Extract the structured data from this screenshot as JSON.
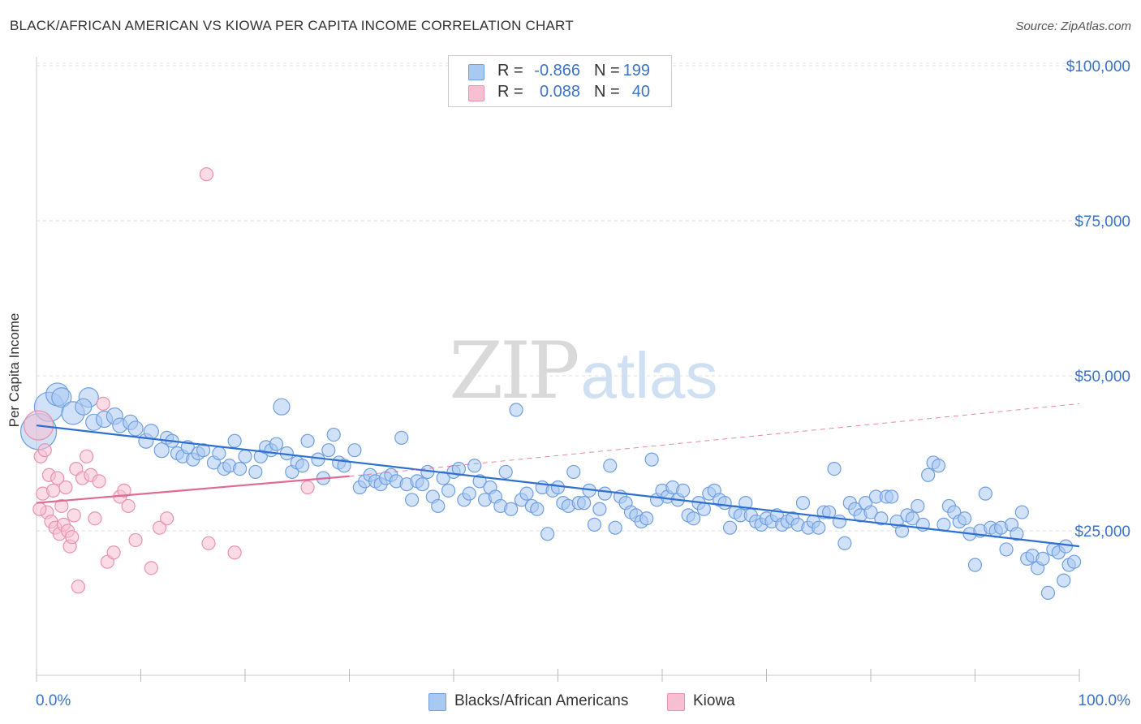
{
  "header": {
    "title": "BLACK/AFRICAN AMERICAN VS KIOWA PER CAPITA INCOME CORRELATION CHART",
    "source": "Source: ZipAtlas.com"
  },
  "watermark": {
    "zip": "ZIP",
    "atlas": "atlas"
  },
  "legend": {
    "rows": [
      {
        "r_label": "R =",
        "r_value": "-0.866",
        "n_label": "N =",
        "n_value": "199",
        "color": "#a9c8f2",
        "edge": "#6f9fe0"
      },
      {
        "r_label": "R =",
        "r_value": "0.088",
        "n_label": "N =",
        "n_value": "40",
        "color": "#f7bfd1",
        "edge": "#e892af"
      }
    ]
  },
  "bottom_legend": [
    {
      "label": "Blacks/African Americans",
      "color": "#a9c8f2",
      "edge": "#6f9fe0"
    },
    {
      "label": "Kiowa",
      "color": "#f7bfd1",
      "edge": "#e892af"
    }
  ],
  "chart_data": {
    "type": "scatter",
    "title": "BLACK/AFRICAN AMERICAN VS KIOWA PER CAPITA INCOME CORRELATION CHART",
    "xlabel": "",
    "ylabel": "Per Capita Income",
    "xlim": [
      0,
      100
    ],
    "ylim": [
      0,
      105000
    ],
    "x_tick_labels": [
      "0.0%",
      "100.0%"
    ],
    "y_ticks": [
      25000,
      50000,
      75000,
      100000
    ],
    "y_tick_labels": [
      "$25,000",
      "$50,000",
      "$75,000",
      "$100,000"
    ],
    "grid": true,
    "legend_position": "top-center",
    "series": [
      {
        "name": "Blacks/African Americans",
        "color": "#a9c8f2",
        "edge": "#6f9fe0",
        "trend": {
          "x": [
            0,
            100
          ],
          "y": [
            42000,
            22500
          ],
          "color": "#2f6fd0"
        },
        "points": [
          [
            0.2,
            41000,
            22
          ],
          [
            1.2,
            45000,
            18
          ],
          [
            2.0,
            47000,
            14
          ],
          [
            2.4,
            46500,
            12
          ],
          [
            3.5,
            44000,
            14
          ],
          [
            5.0,
            46500,
            12
          ],
          [
            4.5,
            45000,
            10
          ],
          [
            5.5,
            42500,
            10
          ],
          [
            6.5,
            43000,
            10
          ],
          [
            7.5,
            43500,
            10
          ],
          [
            8.0,
            42000,
            9
          ],
          [
            9.0,
            42500,
            9
          ],
          [
            9.5,
            41500,
            9
          ],
          [
            10.5,
            39500,
            9
          ],
          [
            11.0,
            41000,
            9
          ],
          [
            12.0,
            38000,
            9
          ],
          [
            12.5,
            40000,
            8
          ],
          [
            13.0,
            39500,
            8
          ],
          [
            13.5,
            37500,
            8
          ],
          [
            14.0,
            37000,
            8
          ],
          [
            14.5,
            38500,
            8
          ],
          [
            15.0,
            36500,
            8
          ],
          [
            15.5,
            37500,
            8
          ],
          [
            16.0,
            38000,
            8
          ],
          [
            17.0,
            36000,
            8
          ],
          [
            17.5,
            37500,
            8
          ],
          [
            18.0,
            35000,
            8
          ],
          [
            18.5,
            35500,
            8
          ],
          [
            19.0,
            39500,
            8
          ],
          [
            19.5,
            35000,
            8
          ],
          [
            20.0,
            37000,
            8
          ],
          [
            21.0,
            34500,
            8
          ],
          [
            21.5,
            37000,
            8
          ],
          [
            22.0,
            38500,
            8
          ],
          [
            22.5,
            38000,
            8
          ],
          [
            23.0,
            39000,
            8
          ],
          [
            23.5,
            45000,
            10
          ],
          [
            24.0,
            37500,
            8
          ],
          [
            24.5,
            34500,
            8
          ],
          [
            25.0,
            36000,
            8
          ],
          [
            25.5,
            35500,
            8
          ],
          [
            26.0,
            39500,
            8
          ],
          [
            27.0,
            36500,
            8
          ],
          [
            27.5,
            33500,
            8
          ],
          [
            28.0,
            38000,
            8
          ],
          [
            28.5,
            40500,
            8
          ],
          [
            29.0,
            36000,
            8
          ],
          [
            29.5,
            35500,
            8
          ],
          [
            30.5,
            38000,
            8
          ],
          [
            31.0,
            32000,
            8
          ],
          [
            31.5,
            33000,
            8
          ],
          [
            32.0,
            34000,
            8
          ],
          [
            32.5,
            33000,
            8
          ],
          [
            33.0,
            32500,
            8
          ],
          [
            33.5,
            33500,
            8
          ],
          [
            34.0,
            34000,
            8
          ],
          [
            34.5,
            33000,
            8
          ],
          [
            35.0,
            40000,
            8
          ],
          [
            35.5,
            32500,
            8
          ],
          [
            36.0,
            30000,
            8
          ],
          [
            36.5,
            33000,
            8
          ],
          [
            37.0,
            32500,
            8
          ],
          [
            37.5,
            34500,
            8
          ],
          [
            38.0,
            30500,
            8
          ],
          [
            38.5,
            29000,
            8
          ],
          [
            39.0,
            33500,
            8
          ],
          [
            39.5,
            31500,
            8
          ],
          [
            40.0,
            34500,
            8
          ],
          [
            40.5,
            35000,
            8
          ],
          [
            41.0,
            30000,
            8
          ],
          [
            41.5,
            31000,
            8
          ],
          [
            42.0,
            35500,
            8
          ],
          [
            42.5,
            33000,
            8
          ],
          [
            43.0,
            30000,
            8
          ],
          [
            43.5,
            32000,
            8
          ],
          [
            44.0,
            30500,
            8
          ],
          [
            44.5,
            29000,
            8
          ],
          [
            45.0,
            34500,
            8
          ],
          [
            45.5,
            28500,
            8
          ],
          [
            46.0,
            44500,
            8
          ],
          [
            46.5,
            30000,
            8
          ],
          [
            47.0,
            31000,
            8
          ],
          [
            47.5,
            29000,
            8
          ],
          [
            48.0,
            28500,
            8
          ],
          [
            48.5,
            32000,
            8
          ],
          [
            49.0,
            24500,
            8
          ],
          [
            49.5,
            31500,
            8
          ],
          [
            50.0,
            32000,
            8
          ],
          [
            50.5,
            29500,
            8
          ],
          [
            51.0,
            29000,
            8
          ],
          [
            51.5,
            34500,
            8
          ],
          [
            52.0,
            29500,
            8
          ],
          [
            52.5,
            29500,
            8
          ],
          [
            53.0,
            31500,
            8
          ],
          [
            53.5,
            26000,
            8
          ],
          [
            54.0,
            28500,
            8
          ],
          [
            54.5,
            31000,
            8
          ],
          [
            55.0,
            35500,
            8
          ],
          [
            55.5,
            25500,
            8
          ],
          [
            56.0,
            30500,
            8
          ],
          [
            56.5,
            29500,
            8
          ],
          [
            57.0,
            28000,
            8
          ],
          [
            57.5,
            27500,
            8
          ],
          [
            58.0,
            26500,
            8
          ],
          [
            58.5,
            27000,
            8
          ],
          [
            59.0,
            36500,
            8
          ],
          [
            59.5,
            30000,
            8
          ],
          [
            60.0,
            31500,
            8
          ],
          [
            60.5,
            30500,
            8
          ],
          [
            61.0,
            32000,
            8
          ],
          [
            61.5,
            30000,
            8
          ],
          [
            62.0,
            31500,
            8
          ],
          [
            62.5,
            27500,
            8
          ],
          [
            63.0,
            27000,
            8
          ],
          [
            63.5,
            29500,
            8
          ],
          [
            64.0,
            28500,
            8
          ],
          [
            64.5,
            31000,
            8
          ],
          [
            65.0,
            31500,
            8
          ],
          [
            65.5,
            30000,
            8
          ],
          [
            66.0,
            29500,
            8
          ],
          [
            66.5,
            25500,
            8
          ],
          [
            67.0,
            28000,
            8
          ],
          [
            67.5,
            27500,
            8
          ],
          [
            68.0,
            29500,
            8
          ],
          [
            68.5,
            27500,
            8
          ],
          [
            69.0,
            26500,
            8
          ],
          [
            69.5,
            26000,
            8
          ],
          [
            70.0,
            27000,
            8
          ],
          [
            70.5,
            26500,
            8
          ],
          [
            71.0,
            27500,
            8
          ],
          [
            71.5,
            26000,
            8
          ],
          [
            72.0,
            26500,
            8
          ],
          [
            72.5,
            27000,
            8
          ],
          [
            73.0,
            26000,
            8
          ],
          [
            73.5,
            29500,
            8
          ],
          [
            74.0,
            25500,
            8
          ],
          [
            74.5,
            26500,
            8
          ],
          [
            75.0,
            25500,
            8
          ],
          [
            75.5,
            28000,
            8
          ],
          [
            76.0,
            28000,
            8
          ],
          [
            76.5,
            35000,
            8
          ],
          [
            77.0,
            26500,
            8
          ],
          [
            77.5,
            23000,
            8
          ],
          [
            78.0,
            29500,
            8
          ],
          [
            78.5,
            28500,
            8
          ],
          [
            79.0,
            27500,
            8
          ],
          [
            79.5,
            29500,
            8
          ],
          [
            80.0,
            28000,
            8
          ],
          [
            80.5,
            30500,
            8
          ],
          [
            81.0,
            27000,
            8
          ],
          [
            81.5,
            30500,
            8
          ],
          [
            82.0,
            30500,
            8
          ],
          [
            82.5,
            26500,
            8
          ],
          [
            83.0,
            25000,
            8
          ],
          [
            83.5,
            27500,
            8
          ],
          [
            84.0,
            27000,
            8
          ],
          [
            84.5,
            29000,
            8
          ],
          [
            85.0,
            26000,
            8
          ],
          [
            85.5,
            34000,
            8
          ],
          [
            86.0,
            36000,
            8
          ],
          [
            86.5,
            35500,
            8
          ],
          [
            87.0,
            26000,
            8
          ],
          [
            87.5,
            29000,
            8
          ],
          [
            88.0,
            28000,
            8
          ],
          [
            88.5,
            26500,
            8
          ],
          [
            89.0,
            27000,
            8
          ],
          [
            89.5,
            24500,
            8
          ],
          [
            90.0,
            19500,
            8
          ],
          [
            90.5,
            25000,
            8
          ],
          [
            91.0,
            31000,
            8
          ],
          [
            91.5,
            25500,
            8
          ],
          [
            92.0,
            25000,
            8
          ],
          [
            92.5,
            25500,
            8
          ],
          [
            93.0,
            22000,
            8
          ],
          [
            93.5,
            26000,
            8
          ],
          [
            94.0,
            24500,
            8
          ],
          [
            94.5,
            28000,
            8
          ],
          [
            95.0,
            20500,
            8
          ],
          [
            95.5,
            21000,
            8
          ],
          [
            96.0,
            19000,
            8
          ],
          [
            96.5,
            20500,
            8
          ],
          [
            97.0,
            15000,
            8
          ],
          [
            97.5,
            22000,
            8
          ],
          [
            98.0,
            21500,
            8
          ],
          [
            98.5,
            17000,
            8
          ],
          [
            99.0,
            19500,
            8
          ],
          [
            99.5,
            20000,
            8
          ],
          [
            98.7,
            22500,
            8
          ]
        ]
      },
      {
        "name": "Kiowa",
        "color": "#f7bfd1",
        "edge": "#e892af",
        "trend": {
          "x": [
            0,
            30
          ],
          "y": [
            29500,
            33800
          ],
          "color": "#e06a93",
          "dash_to": [
            100,
            45500
          ]
        },
        "points": [
          [
            0.2,
            42000,
            18
          ],
          [
            0.4,
            37000,
            8
          ],
          [
            0.6,
            31000,
            8
          ],
          [
            0.8,
            38000,
            8
          ],
          [
            1.0,
            28000,
            8
          ],
          [
            1.2,
            34000,
            8
          ],
          [
            1.4,
            26500,
            8
          ],
          [
            1.6,
            31500,
            8
          ],
          [
            1.8,
            25500,
            8
          ],
          [
            2.0,
            33500,
            8
          ],
          [
            2.2,
            24500,
            8
          ],
          [
            2.4,
            29000,
            8
          ],
          [
            2.6,
            26000,
            8
          ],
          [
            2.8,
            32000,
            8
          ],
          [
            3.0,
            25000,
            8
          ],
          [
            3.2,
            22500,
            8
          ],
          [
            3.4,
            24000,
            8
          ],
          [
            3.6,
            27500,
            8
          ],
          [
            3.8,
            35000,
            8
          ],
          [
            4.0,
            16000,
            8
          ],
          [
            4.4,
            33500,
            8
          ],
          [
            4.8,
            37000,
            8
          ],
          [
            5.2,
            34000,
            8
          ],
          [
            5.6,
            27000,
            8
          ],
          [
            6.0,
            33000,
            8
          ],
          [
            6.4,
            45500,
            8
          ],
          [
            6.8,
            20000,
            8
          ],
          [
            7.4,
            21500,
            8
          ],
          [
            8.0,
            30500,
            8
          ],
          [
            8.4,
            31500,
            8
          ],
          [
            8.8,
            29000,
            8
          ],
          [
            9.5,
            23500,
            8
          ],
          [
            11.0,
            19000,
            8
          ],
          [
            11.8,
            25500,
            8
          ],
          [
            12.5,
            27000,
            8
          ],
          [
            16.3,
            82500,
            8
          ],
          [
            16.5,
            23000,
            8
          ],
          [
            19.0,
            21500,
            8
          ],
          [
            26.0,
            32000,
            8
          ],
          [
            0.3,
            28500,
            8
          ]
        ]
      }
    ]
  }
}
